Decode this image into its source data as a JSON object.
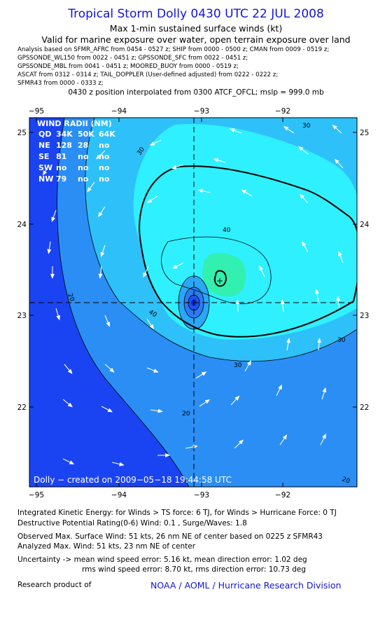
{
  "header": {
    "title": "Tropical Storm Dolly 0430 UTC 22 JUL 2008",
    "subtitle1": "Max 1-min sustained surface winds (kt)",
    "subtitle2": "Valid for marine exposure over water, open terrain exposure over land",
    "analysis_lines": [
      "Analysis based on   SFMR_AFRC from 0454 - 0527 z;  SHIP from 0000 - 0500 z;  CMAN from 0009 - 0519 z;",
      "GPSSONDE_WL150 from 0022 - 0451 z;  GPSSONDE_SFC from 0022 - 0451 z;",
      "GPSSONDE_MBL from 0041 - 0451 z;  MOORED_BUOY from 0000 - 0519 z;",
      "ASCAT from 0312 - 0314 z;  TAIL_DOPPLER (User-defined adjusted) from 0222 - 0222 z;",
      "SFMR43 from 0000 - 0333 z;"
    ],
    "position_line": "0430 z position interpolated from 0300 ATCF_OFCL; mslp = 999.0 mb"
  },
  "map": {
    "x_ticks": [
      "−95",
      "−94",
      "−93",
      "−92"
    ],
    "y_ticks": [
      "25",
      "24",
      "23",
      "22"
    ],
    "contour_labels": [
      "20",
      "30",
      "40",
      "20",
      "30",
      "40",
      "20",
      "30",
      "30"
    ],
    "credit": "Dolly − created on 2009−05−18 19:44:58 UTC",
    "center_marker": "+",
    "colors": {
      "lt20": "#1a44f2",
      "c20_30": "#2a8ef5",
      "c30_40": "#2ec0f8",
      "c40_50": "#2ef0ff",
      "gt50": "#32f0b0",
      "frame": "#000000"
    }
  },
  "wind_radii": {
    "title": "WIND RADII (NM)",
    "header": [
      "QD",
      "34K",
      "50K",
      "64K"
    ],
    "rows": [
      [
        "NE",
        "128",
        "28",
        "no"
      ],
      [
        "SE",
        "81",
        "no",
        "no"
      ],
      [
        "SW",
        "no",
        "no",
        "no"
      ],
      [
        "NW",
        "79",
        "no",
        "no"
      ]
    ]
  },
  "footer": {
    "line1": "Integrated Kinetic Energy:  for Winds > TS force: 6 TJ,  for Winds > Hurricane Force: 0 TJ",
    "line2": "Destructive Potential Rating(0-6)   Wind: 0.1 , Surge/Waves: 1.8",
    "line3": "Observed Max. Surface Wind: 51 kts, 26 nm NE of center based on 0225 z SFMR43",
    "line4": "Analyzed Max. Wind: 51 kts, 23 nm NE of center",
    "line5": "Uncertainty -> mean wind speed error: 5.16 kt,   mean direction error: 1.02 deg",
    "line6": "rms wind speed error: 8.70 kt,   rms direction error: 10.73 deg",
    "research_label": "Research product of",
    "org": "NOAA / AOML / Hurricane Research Division"
  }
}
